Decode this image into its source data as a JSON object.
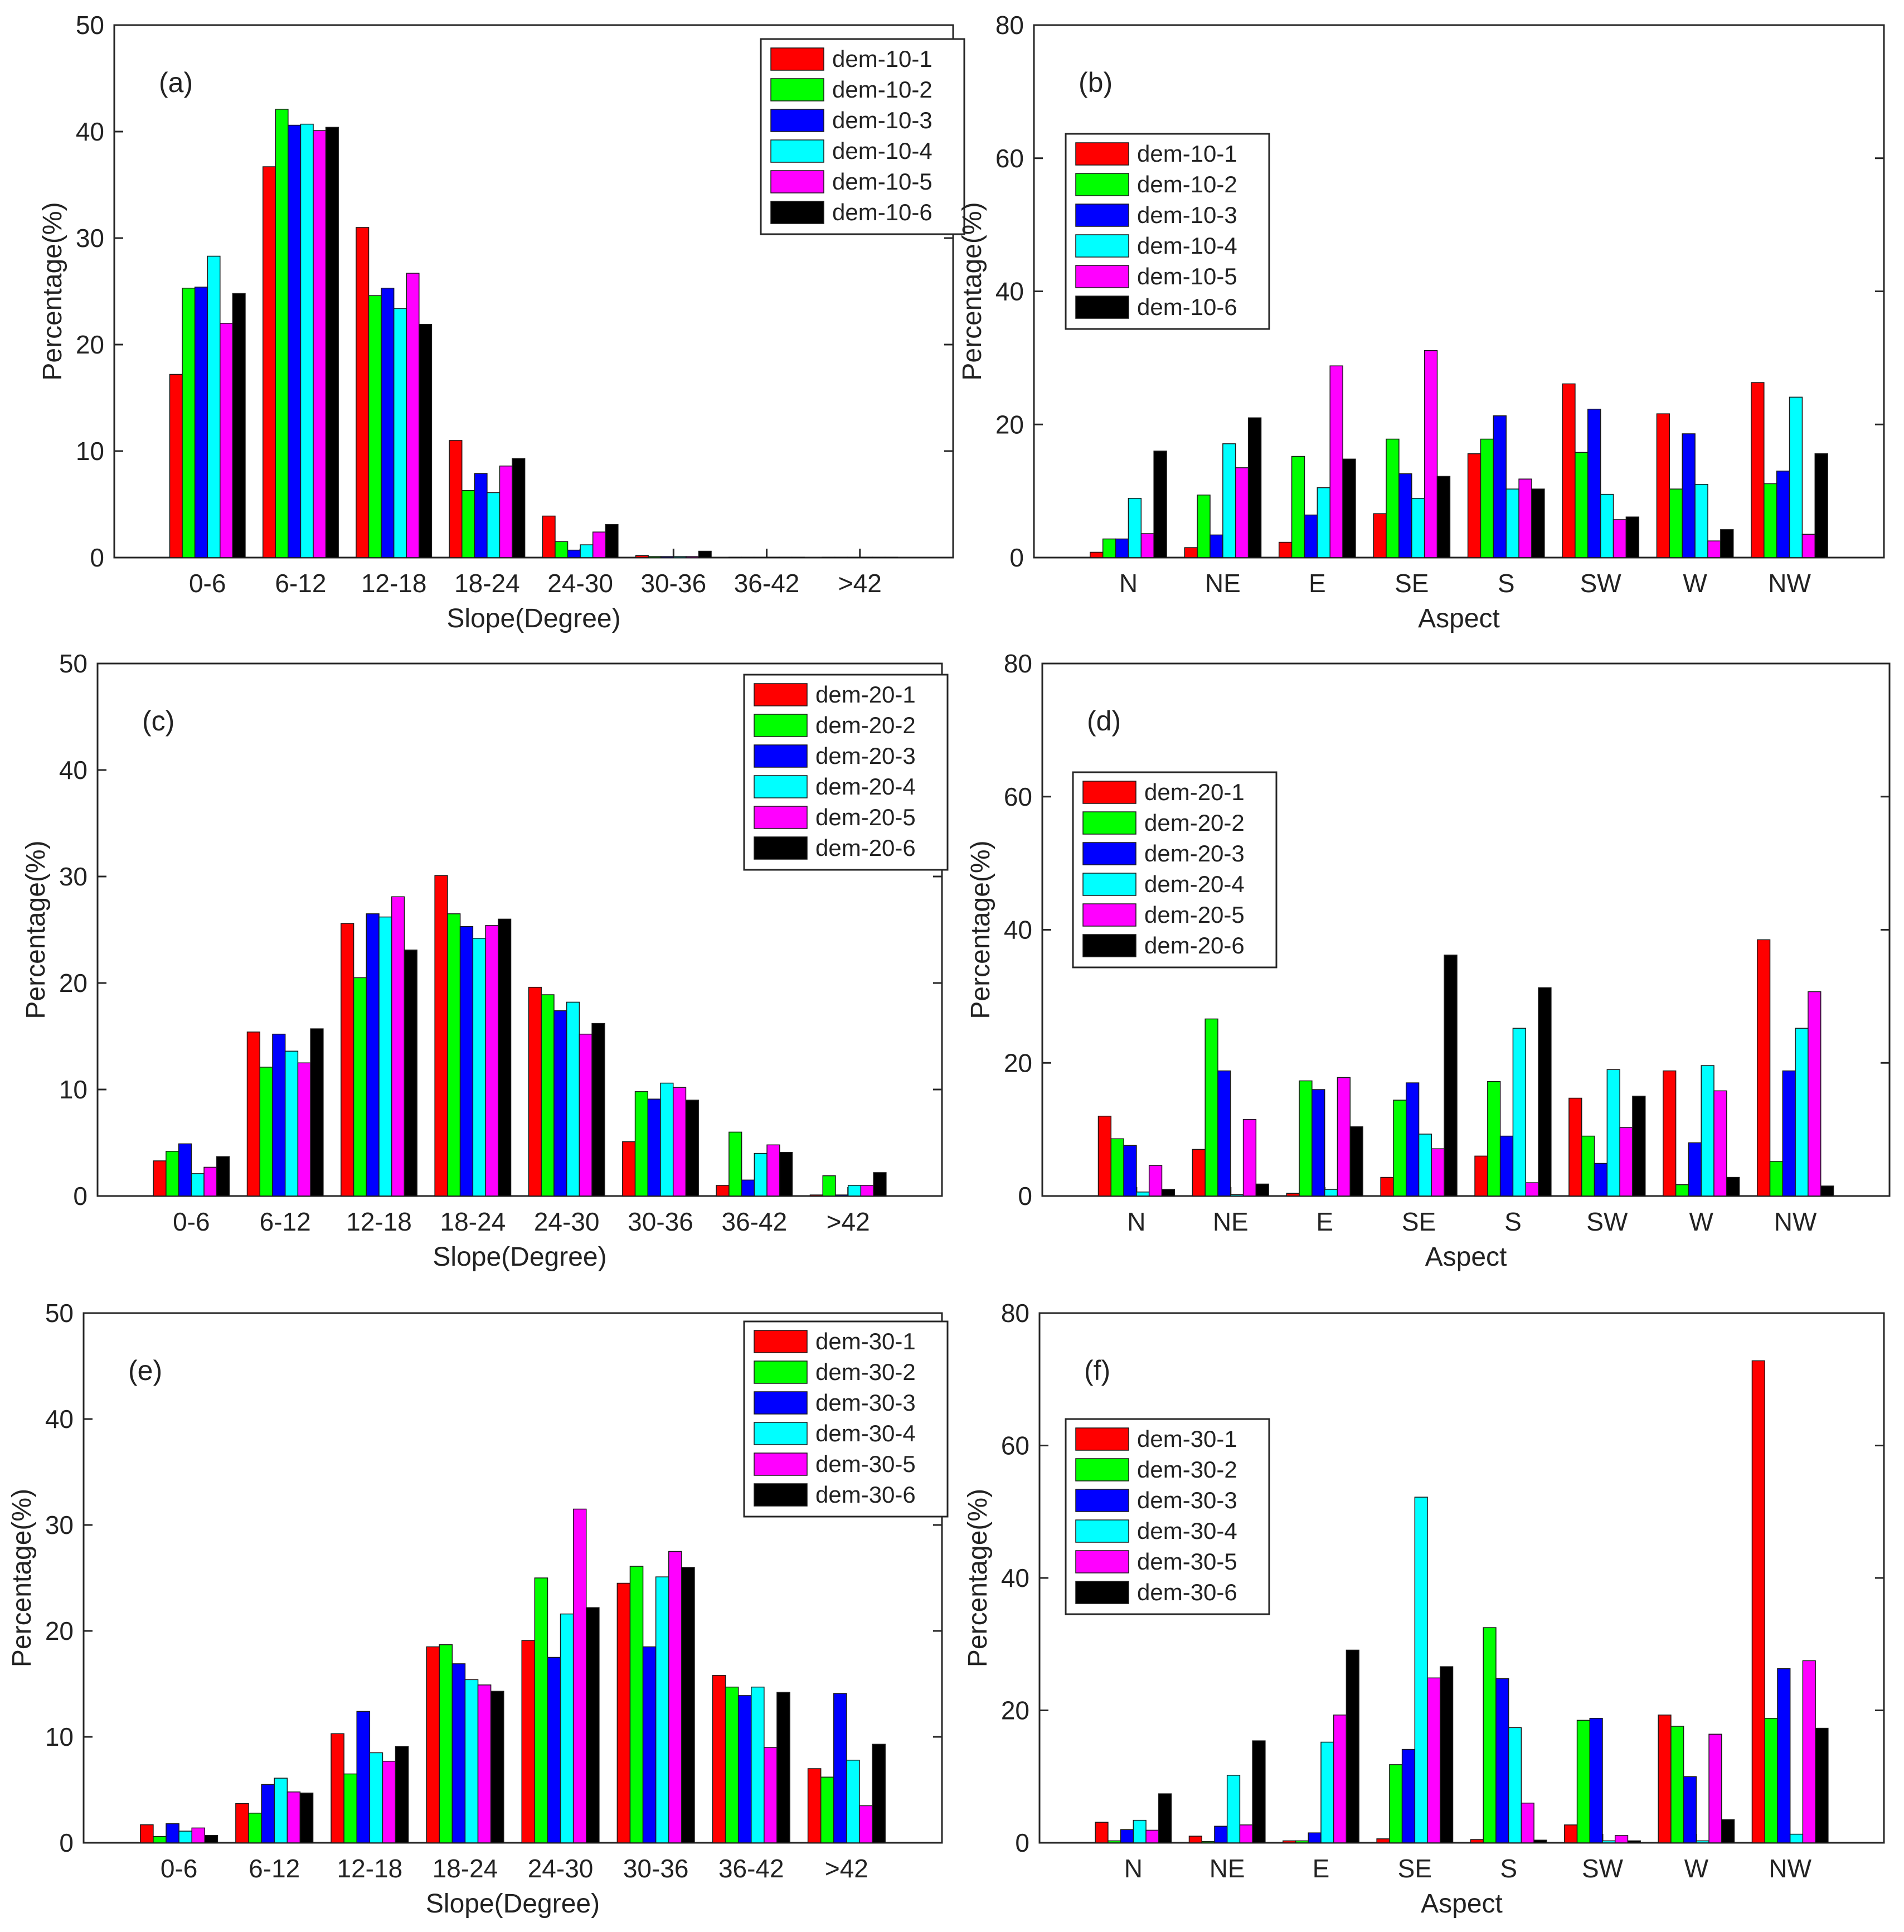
{
  "figure": {
    "description_free": true,
    "panel_order": [
      "a",
      "b",
      "c",
      "d",
      "e",
      "f"
    ]
  },
  "series_colors": [
    "#ff0000",
    "#00ff00",
    "#0000ff",
    "#00ffff",
    "#ff00ff",
    "#000000"
  ],
  "chart_data": [
    {
      "id": "a",
      "type": "bar",
      "panel_label": "(a)",
      "xlabel": "Slope(Degree)",
      "ylabel": "Percentage(%)",
      "ylim": [
        0,
        50
      ],
      "yticks": [
        0,
        10,
        20,
        30,
        40,
        50
      ],
      "legend_position": "top-right",
      "categories": [
        "0-6",
        "6-12",
        "12-18",
        "18-24",
        "24-30",
        "30-36",
        "36-42",
        ">42"
      ],
      "series": [
        {
          "name": "dem-10-1",
          "values": [
            17.2,
            36.7,
            31.0,
            11.0,
            3.9,
            0.2,
            0.0,
            0.0
          ]
        },
        {
          "name": "dem-10-2",
          "values": [
            25.3,
            42.1,
            24.6,
            6.3,
            1.5,
            0.1,
            0.0,
            0.0
          ]
        },
        {
          "name": "dem-10-3",
          "values": [
            25.4,
            40.6,
            25.3,
            7.9,
            0.7,
            0.1,
            0.0,
            0.0
          ]
        },
        {
          "name": "dem-10-4",
          "values": [
            28.3,
            40.7,
            23.4,
            6.1,
            1.2,
            0.1,
            0.0,
            0.0
          ]
        },
        {
          "name": "dem-10-5",
          "values": [
            22.0,
            40.1,
            26.7,
            8.6,
            2.4,
            0.1,
            0.0,
            0.0
          ]
        },
        {
          "name": "dem-10-6",
          "values": [
            24.8,
            40.4,
            21.9,
            9.3,
            3.1,
            0.6,
            0.0,
            0.0
          ]
        }
      ]
    },
    {
      "id": "b",
      "type": "bar",
      "panel_label": "(b)",
      "xlabel": "Aspect",
      "ylabel": "Percentage(%)",
      "ylim": [
        0,
        80
      ],
      "yticks": [
        0,
        20,
        40,
        60,
        80
      ],
      "legend_position": "upper-left",
      "categories": [
        "N",
        "NE",
        "E",
        "SE",
        "S",
        "SW",
        "W",
        "NW"
      ],
      "series": [
        {
          "name": "dem-10-1",
          "values": [
            0.8,
            1.5,
            2.3,
            6.6,
            15.6,
            26.1,
            21.6,
            26.3
          ]
        },
        {
          "name": "dem-10-2",
          "values": [
            2.8,
            9.4,
            15.2,
            17.8,
            17.8,
            15.8,
            10.3,
            11.1
          ]
        },
        {
          "name": "dem-10-3",
          "values": [
            2.8,
            3.4,
            6.4,
            12.6,
            21.3,
            22.3,
            18.6,
            13.0
          ]
        },
        {
          "name": "dem-10-4",
          "values": [
            8.9,
            17.1,
            10.5,
            8.9,
            10.3,
            9.5,
            11.0,
            24.1
          ]
        },
        {
          "name": "dem-10-5",
          "values": [
            3.6,
            13.5,
            28.8,
            31.1,
            11.8,
            5.7,
            2.5,
            3.5
          ]
        },
        {
          "name": "dem-10-6",
          "values": [
            16.0,
            21.0,
            14.8,
            12.2,
            10.3,
            6.1,
            4.2,
            15.6
          ]
        }
      ]
    },
    {
      "id": "c",
      "type": "bar",
      "panel_label": "(c)",
      "xlabel": "Slope(Degree)",
      "ylabel": "Percentage(%)",
      "ylim": [
        0,
        50
      ],
      "yticks": [
        0,
        10,
        20,
        30,
        40,
        50
      ],
      "legend_position": "top-right",
      "categories": [
        "0-6",
        "6-12",
        "12-18",
        "18-24",
        "24-30",
        "30-36",
        "36-42",
        ">42"
      ],
      "series": [
        {
          "name": "dem-20-1",
          "values": [
            3.3,
            15.4,
            25.6,
            30.1,
            19.6,
            5.1,
            1.0,
            0.1
          ]
        },
        {
          "name": "dem-20-2",
          "values": [
            4.2,
            12.1,
            20.5,
            26.5,
            18.9,
            9.8,
            6.0,
            1.9
          ]
        },
        {
          "name": "dem-20-3",
          "values": [
            4.9,
            15.2,
            26.5,
            25.3,
            17.4,
            9.1,
            1.5,
            0.1
          ]
        },
        {
          "name": "dem-20-4",
          "values": [
            2.1,
            13.6,
            26.2,
            24.2,
            18.2,
            10.6,
            4.0,
            1.0
          ]
        },
        {
          "name": "dem-20-5",
          "values": [
            2.7,
            12.5,
            28.1,
            25.4,
            15.2,
            10.2,
            4.8,
            1.0
          ]
        },
        {
          "name": "dem-20-6",
          "values": [
            3.7,
            15.7,
            23.1,
            26.0,
            16.2,
            9.0,
            4.1,
            2.2
          ]
        }
      ]
    },
    {
      "id": "d",
      "type": "bar",
      "panel_label": "(d)",
      "xlabel": "Aspect",
      "ylabel": "Percentage(%)",
      "ylim": [
        0,
        80
      ],
      "yticks": [
        0,
        20,
        40,
        60,
        80
      ],
      "legend_position": "upper-left",
      "categories": [
        "N",
        "NE",
        "E",
        "SE",
        "S",
        "SW",
        "W",
        "NW"
      ],
      "series": [
        {
          "name": "dem-20-1",
          "values": [
            12.0,
            7.0,
            0.4,
            2.8,
            6.0,
            14.7,
            18.8,
            38.5
          ]
        },
        {
          "name": "dem-20-2",
          "values": [
            8.6,
            26.6,
            17.3,
            14.4,
            17.2,
            9.0,
            1.7,
            5.2
          ]
        },
        {
          "name": "dem-20-3",
          "values": [
            7.6,
            18.8,
            16.0,
            17.0,
            9.0,
            4.9,
            8.0,
            18.8
          ]
        },
        {
          "name": "dem-20-4",
          "values": [
            0.6,
            0.2,
            1.0,
            9.3,
            25.2,
            19.0,
            19.6,
            25.2
          ]
        },
        {
          "name": "dem-20-5",
          "values": [
            4.6,
            11.5,
            17.8,
            7.1,
            2.0,
            10.3,
            15.8,
            30.7
          ]
        },
        {
          "name": "dem-20-6",
          "values": [
            1.0,
            1.8,
            10.4,
            36.2,
            31.3,
            15.0,
            2.8,
            1.5
          ]
        }
      ]
    },
    {
      "id": "e",
      "type": "bar",
      "panel_label": "(e)",
      "xlabel": "Slope(Degree)",
      "ylabel": "Percentage(%)",
      "ylim": [
        0,
        50
      ],
      "yticks": [
        0,
        10,
        20,
        30,
        40,
        50
      ],
      "legend_position": "top-right",
      "categories": [
        "0-6",
        "6-12",
        "12-18",
        "18-24",
        "24-30",
        "30-36",
        "36-42",
        ">42"
      ],
      "series": [
        {
          "name": "dem-30-1",
          "values": [
            1.7,
            3.7,
            10.3,
            18.5,
            19.1,
            24.5,
            15.8,
            7.0
          ]
        },
        {
          "name": "dem-30-2",
          "values": [
            0.6,
            2.8,
            6.5,
            18.7,
            25.0,
            26.1,
            14.7,
            6.2
          ]
        },
        {
          "name": "dem-30-3",
          "values": [
            1.8,
            5.5,
            12.4,
            16.9,
            17.5,
            18.5,
            13.9,
            14.1
          ]
        },
        {
          "name": "dem-30-4",
          "values": [
            1.1,
            6.1,
            8.5,
            15.4,
            21.6,
            25.1,
            14.7,
            7.8
          ]
        },
        {
          "name": "dem-30-5",
          "values": [
            1.4,
            4.8,
            7.7,
            14.9,
            31.5,
            27.5,
            9.0,
            3.5
          ]
        },
        {
          "name": "dem-30-6",
          "values": [
            0.7,
            4.7,
            9.1,
            14.3,
            22.2,
            26.0,
            14.2,
            9.3
          ]
        }
      ]
    },
    {
      "id": "f",
      "type": "bar",
      "panel_label": "(f)",
      "xlabel": "Aspect",
      "ylabel": "Percentage(%)",
      "ylim": [
        0,
        80
      ],
      "yticks": [
        0,
        20,
        40,
        60,
        80
      ],
      "legend_position": "upper-left",
      "categories": [
        "N",
        "NE",
        "E",
        "SE",
        "S",
        "SW",
        "W",
        "NW"
      ],
      "series": [
        {
          "name": "dem-30-1",
          "values": [
            3.1,
            1.0,
            0.3,
            0.6,
            0.5,
            2.7,
            19.3,
            72.8
          ]
        },
        {
          "name": "dem-30-2",
          "values": [
            0.3,
            0.2,
            0.3,
            11.8,
            32.5,
            18.5,
            17.6,
            18.8
          ]
        },
        {
          "name": "dem-30-3",
          "values": [
            2.0,
            2.5,
            1.5,
            14.1,
            24.8,
            18.8,
            10.0,
            26.3
          ]
        },
        {
          "name": "dem-30-4",
          "values": [
            3.4,
            10.2,
            15.2,
            52.2,
            17.4,
            0.3,
            0.3,
            1.3
          ]
        },
        {
          "name": "dem-30-5",
          "values": [
            1.9,
            2.7,
            19.3,
            24.9,
            6.0,
            1.1,
            16.4,
            27.5
          ]
        },
        {
          "name": "dem-30-6",
          "values": [
            7.4,
            15.4,
            29.1,
            26.6,
            0.4,
            0.3,
            3.5,
            17.3
          ]
        }
      ]
    }
  ]
}
